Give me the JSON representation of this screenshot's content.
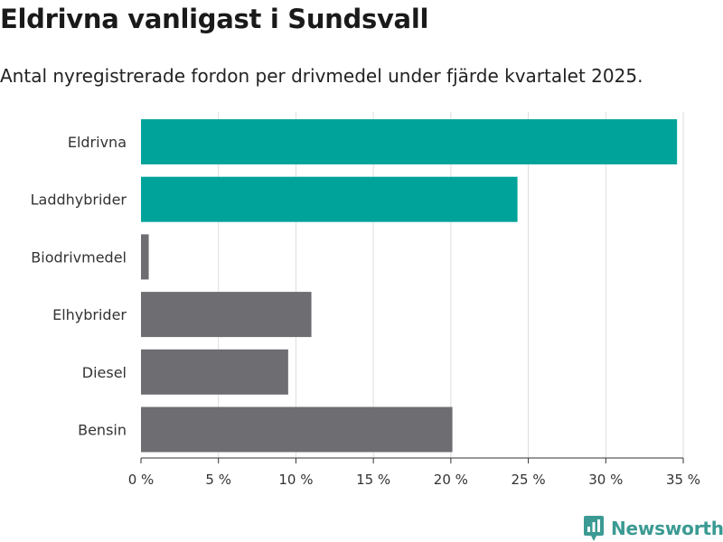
{
  "header": {
    "title": "Eldrivna vanligast i Sundsvall",
    "subtitle": "Antal nyregistrerade fordon per drivmedel under fjärde kvartalet 2025."
  },
  "brand": {
    "name": "Newsworthy",
    "icon": "newsworthy-logo-icon",
    "color": "#3b9a93"
  },
  "colors": {
    "highlight": "#00a39a",
    "default": "#6e6d72",
    "grid": "#dddddd",
    "axis": "#333333"
  },
  "chart_data": {
    "type": "bar",
    "orientation": "horizontal",
    "categories": [
      "Eldrivna",
      "Laddhybrider",
      "Biodrivmedel",
      "Elhybrider",
      "Diesel",
      "Bensin"
    ],
    "values": [
      34.6,
      24.3,
      0.5,
      11.0,
      9.5,
      20.1
    ],
    "highlighted": [
      true,
      true,
      false,
      false,
      false,
      false
    ],
    "xlim": [
      0,
      35
    ],
    "xticks": [
      0,
      5,
      10,
      15,
      20,
      25,
      30,
      35
    ],
    "tick_labels": [
      "0 %",
      "5 %",
      "10 %",
      "15 %",
      "20 %",
      "25 %",
      "30 %",
      "35 %"
    ],
    "grid": true,
    "legend": "none"
  }
}
